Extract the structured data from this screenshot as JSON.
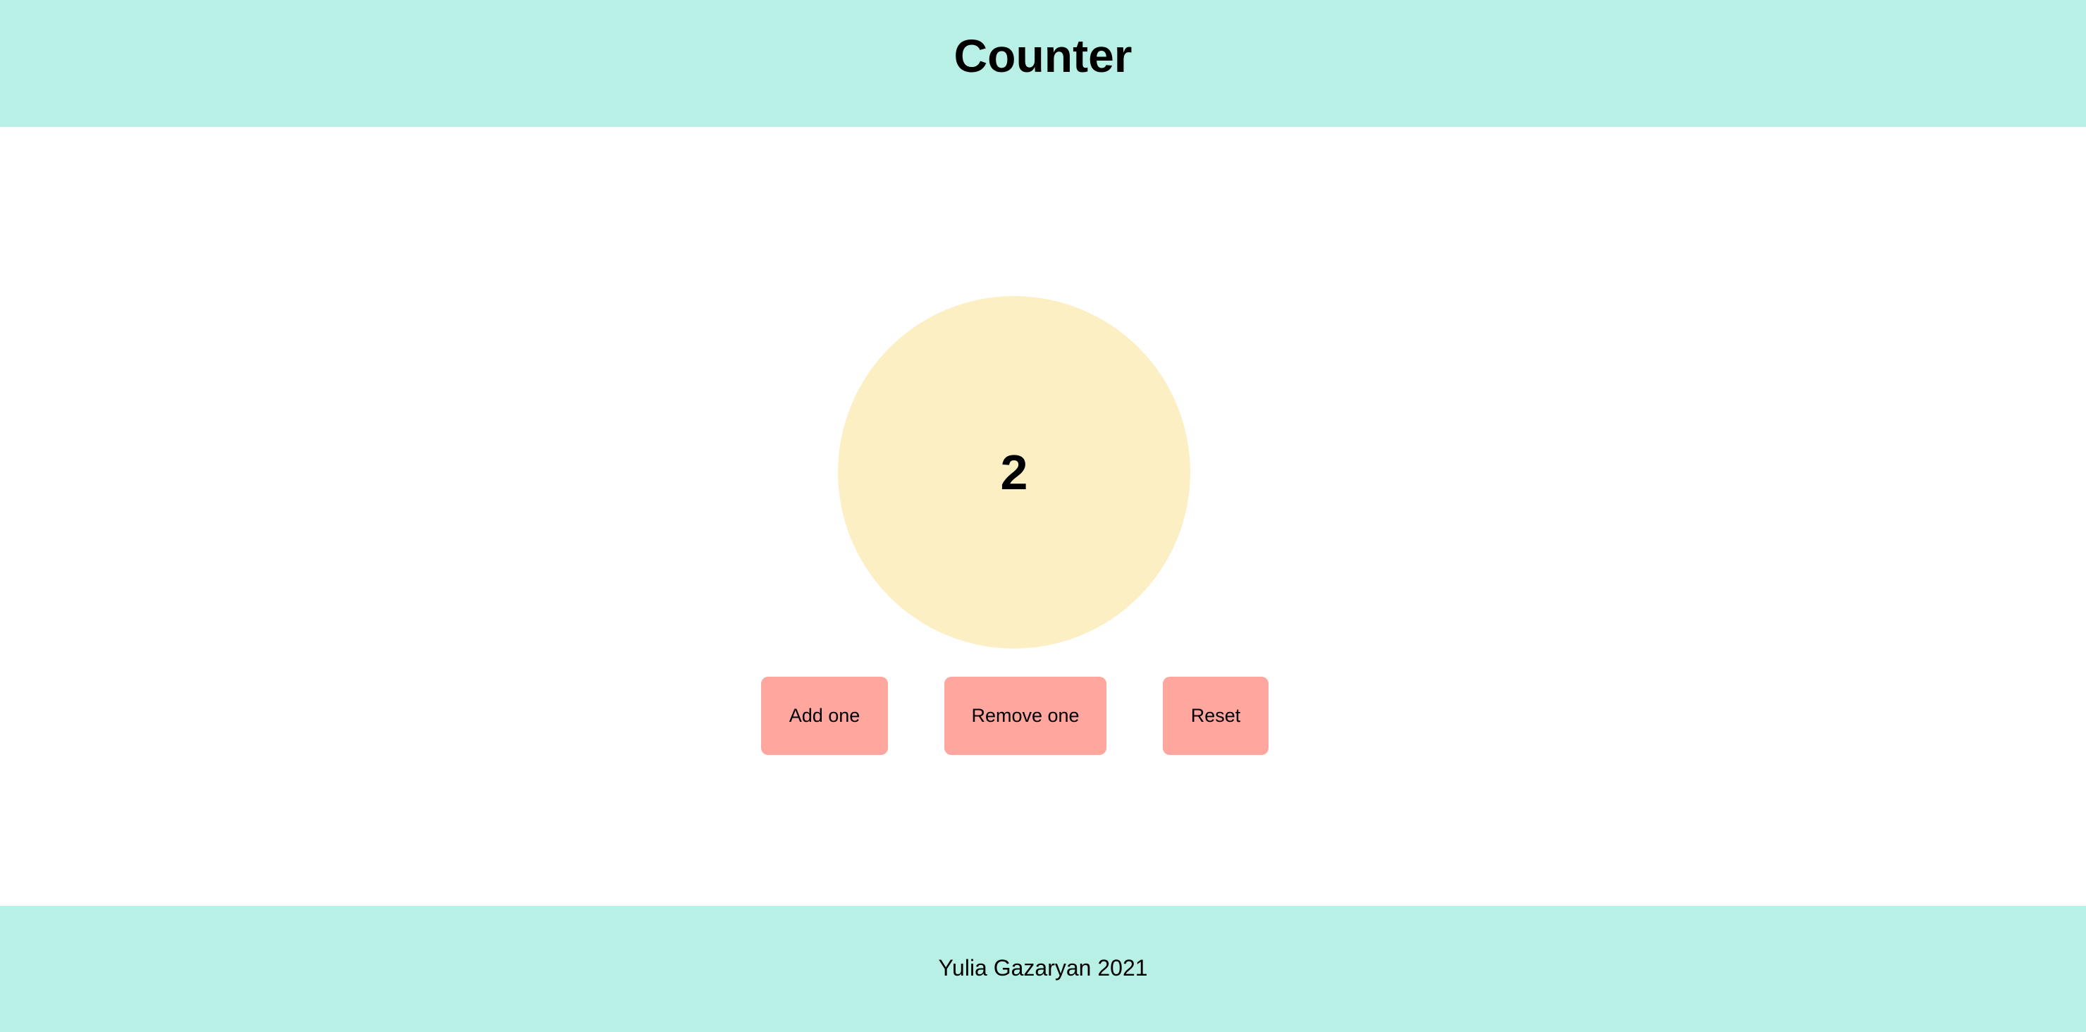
{
  "header": {
    "title": "Counter",
    "background": "#b8f0e6"
  },
  "counter": {
    "value": "2",
    "circle_color": "#fdefc4"
  },
  "controls": {
    "add_label": "Add one",
    "remove_label": "Remove one",
    "reset_label": "Reset",
    "button_color": "#ffa69f"
  },
  "footer": {
    "text": "Yulia Gazaryan 2021",
    "background": "#b8f0e6"
  }
}
